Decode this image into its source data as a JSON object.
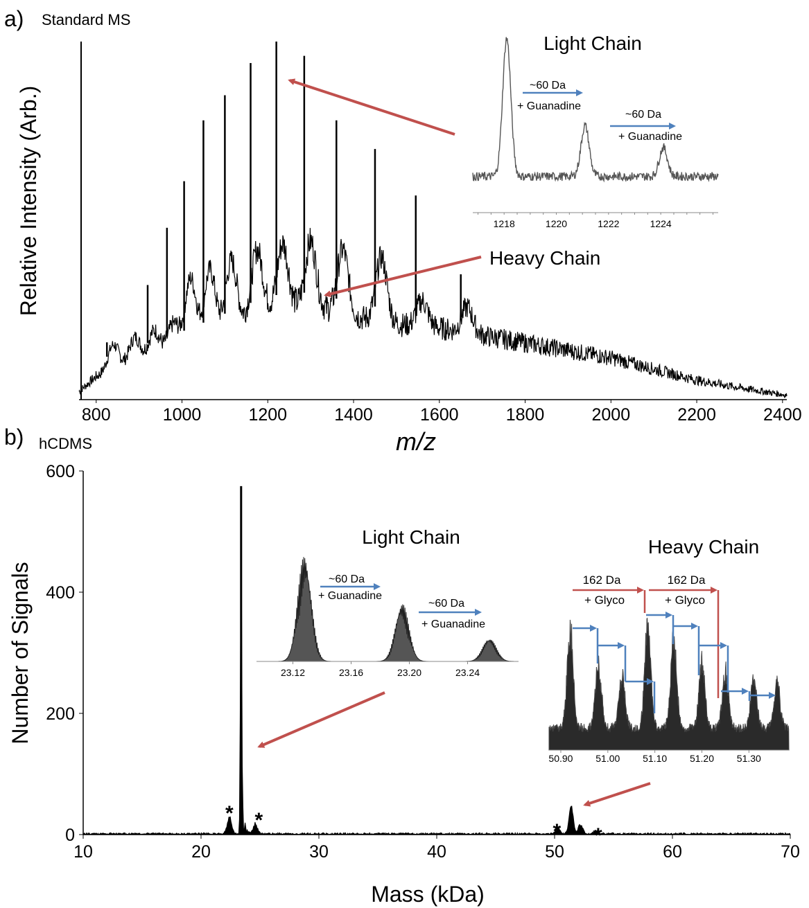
{
  "chart_data": [
    {
      "panel": "a)",
      "panel_name": "Standard MS",
      "type": "line",
      "xlabel": "m/z",
      "ylabel": "Relative Intensity (Arb.)",
      "xlim": [
        760,
        2410
      ],
      "ylim": [
        0,
        1
      ],
      "xticks": [
        "800",
        "1000",
        "1200",
        "1400",
        "1600",
        "1800",
        "2000",
        "2200",
        "2400"
      ],
      "peaks": {
        "x": [
          825,
          875,
          920,
          965,
          1005,
          1050,
          1100,
          1160,
          1220,
          1285,
          1360,
          1450,
          1545,
          1650
        ],
        "y": [
          0.16,
          0.1,
          0.32,
          0.48,
          0.61,
          0.78,
          0.85,
          0.94,
          1.0,
          0.96,
          0.78,
          0.7,
          0.57,
          0.35
        ]
      },
      "background": {
        "x": [
          760,
          800,
          900,
          1000,
          1100,
          1200,
          1300,
          1400,
          1500,
          1600,
          1700,
          1800,
          1900,
          2000,
          2100,
          2200,
          2300,
          2410
        ],
        "y": [
          0.02,
          0.06,
          0.1,
          0.14,
          0.19,
          0.24,
          0.25,
          0.22,
          0.2,
          0.19,
          0.17,
          0.15,
          0.13,
          0.11,
          0.08,
          0.05,
          0.03,
          0.01
        ]
      },
      "annotations": {
        "heavy_chain": "Heavy Chain",
        "asterisk": "*"
      },
      "inset": {
        "title": "Light Chain",
        "xticks": [
          "1218",
          "1220",
          "1222",
          "1224"
        ],
        "peaks": {
          "x": [
            1218.1,
            1221.1,
            1224.1
          ],
          "y": [
            0.95,
            0.35,
            0.2
          ]
        },
        "shift_1": {
          "da": "~60 Da",
          "label": "+ Guanadine"
        },
        "shift_2": {
          "da": "~60 Da",
          "label": "+ Guanadine"
        }
      }
    },
    {
      "panel": "b)",
      "panel_name": "hCDMS",
      "type": "bar",
      "xlabel": "Mass (kDa)",
      "ylabel": "Number of Signals",
      "xlim": [
        10,
        70
      ],
      "ylim": [
        0,
        600
      ],
      "xticks": [
        "10",
        "20",
        "30",
        "40",
        "50",
        "60",
        "70"
      ],
      "yticks": [
        "0",
        "200",
        "400",
        "600"
      ],
      "peaks": {
        "x": [
          22.4,
          23.4,
          24.6,
          50.3,
          51.4,
          52.2,
          53.5
        ],
        "y": [
          32,
          575,
          20,
          10,
          50,
          18,
          6
        ]
      },
      "asterisks": {
        "x": [
          22.4,
          24.9,
          50.2,
          53.7
        ],
        "label": "*"
      },
      "light_inset": {
        "title": "Light Chain",
        "xticks": [
          "23.12",
          "23.16",
          "23.20",
          "23.24"
        ],
        "peaks": {
          "x": [
            23.128,
            23.195,
            23.255
          ],
          "y": [
            1.0,
            0.55,
            0.22
          ]
        },
        "shift_1": {
          "da": "~60 Da",
          "label": "+ Guanadine"
        },
        "shift_2": {
          "da": "~60 Da",
          "label": "+ Guanadine"
        }
      },
      "heavy_inset": {
        "title": "Heavy Chain",
        "xticks": [
          "50.90",
          "51.00",
          "51.10",
          "51.20",
          "51.30"
        ],
        "peaks": {
          "x": [
            50.92,
            50.98,
            51.03,
            51.085,
            51.14,
            51.2,
            51.25,
            51.31,
            51.36
          ],
          "y": [
            0.78,
            0.5,
            0.42,
            0.85,
            0.72,
            0.5,
            0.45,
            0.4,
            0.35
          ]
        },
        "glyco_1": {
          "da": "162 Da",
          "label": "+ Glyco"
        },
        "glyco_2": {
          "da": "162 Da",
          "label": "+ Glyco"
        }
      }
    }
  ],
  "colors": {
    "trace": "#000000",
    "inset_trace": "#555555",
    "arrow_red": "#c0504d",
    "arrow_blue": "#4f81bd"
  }
}
